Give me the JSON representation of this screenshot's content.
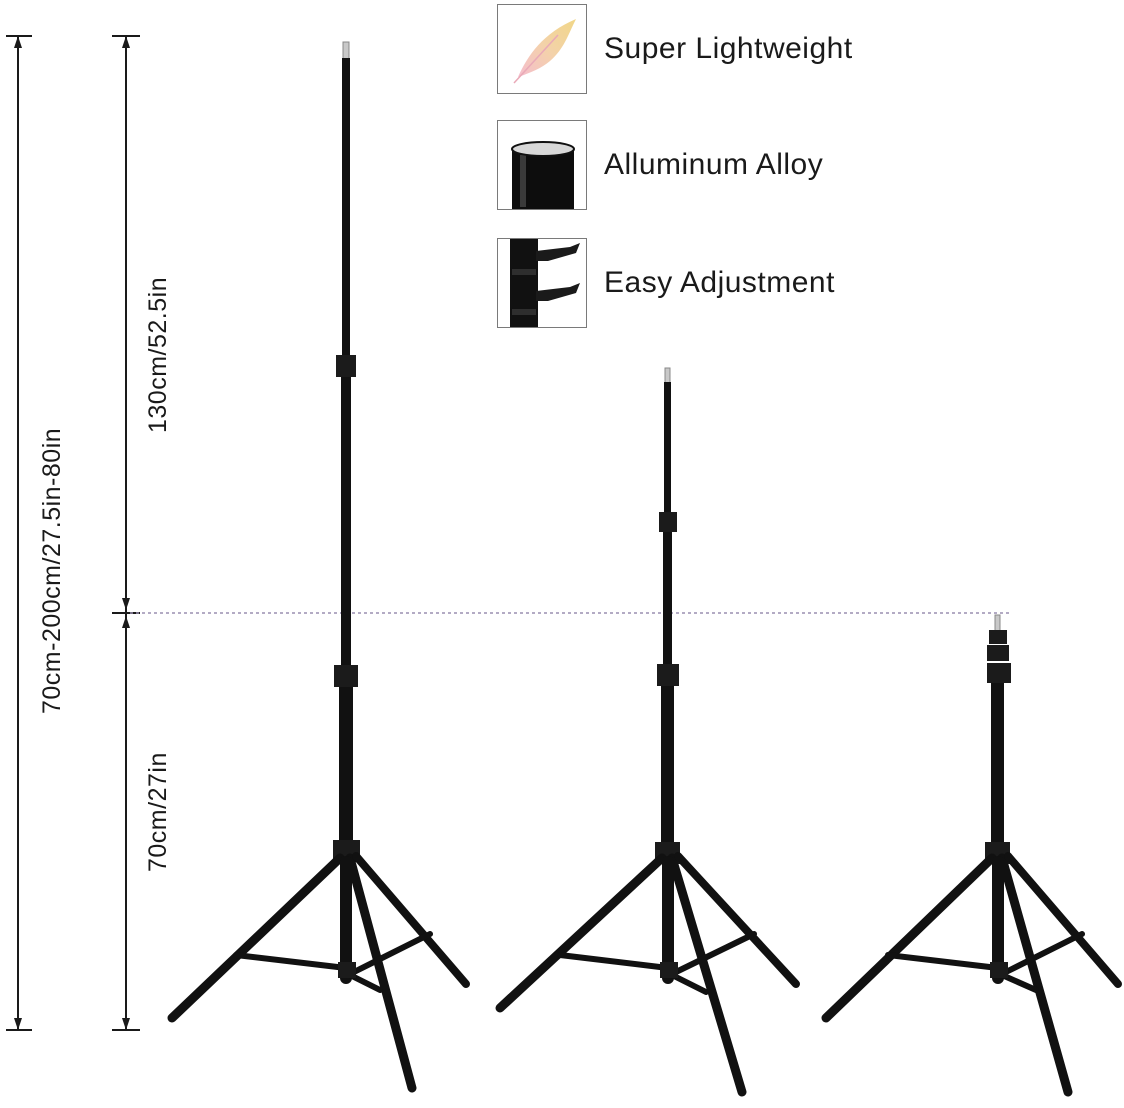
{
  "features": [
    {
      "label": "Super Lightweight",
      "icon": "feather-icon"
    },
    {
      "label": "Alluminum Alloy",
      "icon": "aluminum-tube-icon"
    },
    {
      "label": "Easy Adjustment",
      "icon": "adjustment-clamp-icon"
    }
  ],
  "dimensions": {
    "total": "70cm-200cm/27.5in-80in",
    "upper": "130cm/52.5in",
    "lower": "70cm/27in"
  },
  "colors": {
    "stand": "#111111",
    "measure_line": "#1a1a1a",
    "guide_dash": "#9a8fb0"
  }
}
